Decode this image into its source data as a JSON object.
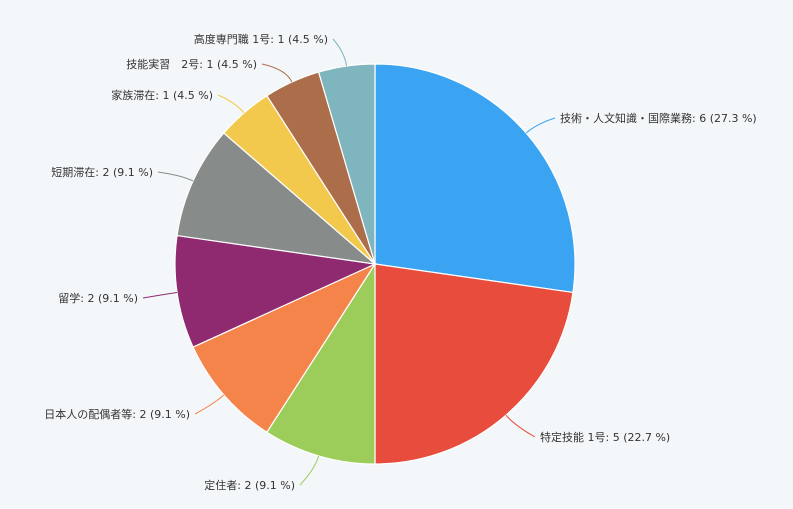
{
  "colors": {
    "background": "#f4f7f9",
    "label_text": "#333333",
    "slice_border": "#ffffff"
  },
  "chart_data": {
    "type": "pie",
    "title": "",
    "start": "12 o'clock",
    "direction": "clockwise",
    "slices": [
      {
        "name": "技術・人文知識・国際業務",
        "value": 6,
        "percent": 27.3,
        "label": "技術・人文知識・国際業務: 6 (27.3 %)",
        "color": "#3aa3f2",
        "label_side": "right"
      },
      {
        "name": "特定技能 1号",
        "value": 5,
        "percent": 22.7,
        "label": "特定技能 1号: 5 (22.7 %)",
        "color": "#e74c3c",
        "label_side": "right"
      },
      {
        "name": "定住者",
        "value": 2,
        "percent": 9.1,
        "label": "定住者: 2 (9.1 %)",
        "color": "#9ccc5a",
        "label_side": "left"
      },
      {
        "name": "日本人の配偶者等",
        "value": 2,
        "percent": 9.1,
        "label": "日本人の配偶者等: 2 (9.1 %)",
        "color": "#f5844a",
        "label_side": "left"
      },
      {
        "name": "留学",
        "value": 2,
        "percent": 9.1,
        "label": "留学: 2 (9.1 %)",
        "color": "#8f2a70",
        "label_side": "left"
      },
      {
        "name": "短期滞在",
        "value": 2,
        "percent": 9.1,
        "label": "短期滞在: 2 (9.1 %)",
        "color": "#878b8a",
        "label_side": "left"
      },
      {
        "name": "家族滞在",
        "value": 1,
        "percent": 4.5,
        "label": "家族滞在: 1 (4.5 %)",
        "color": "#f2c94c",
        "label_side": "left"
      },
      {
        "name": "技能実習 2号",
        "value": 1,
        "percent": 4.5,
        "label": "技能実習　2号: 1 (4.5 %)",
        "color": "#ac6e4a",
        "label_side": "left"
      },
      {
        "name": "高度専門職 1号",
        "value": 1,
        "percent": 4.5,
        "label": "高度専門職 1号: 1 (4.5 %)",
        "color": "#7fb5bf",
        "label_side": "left"
      }
    ]
  }
}
